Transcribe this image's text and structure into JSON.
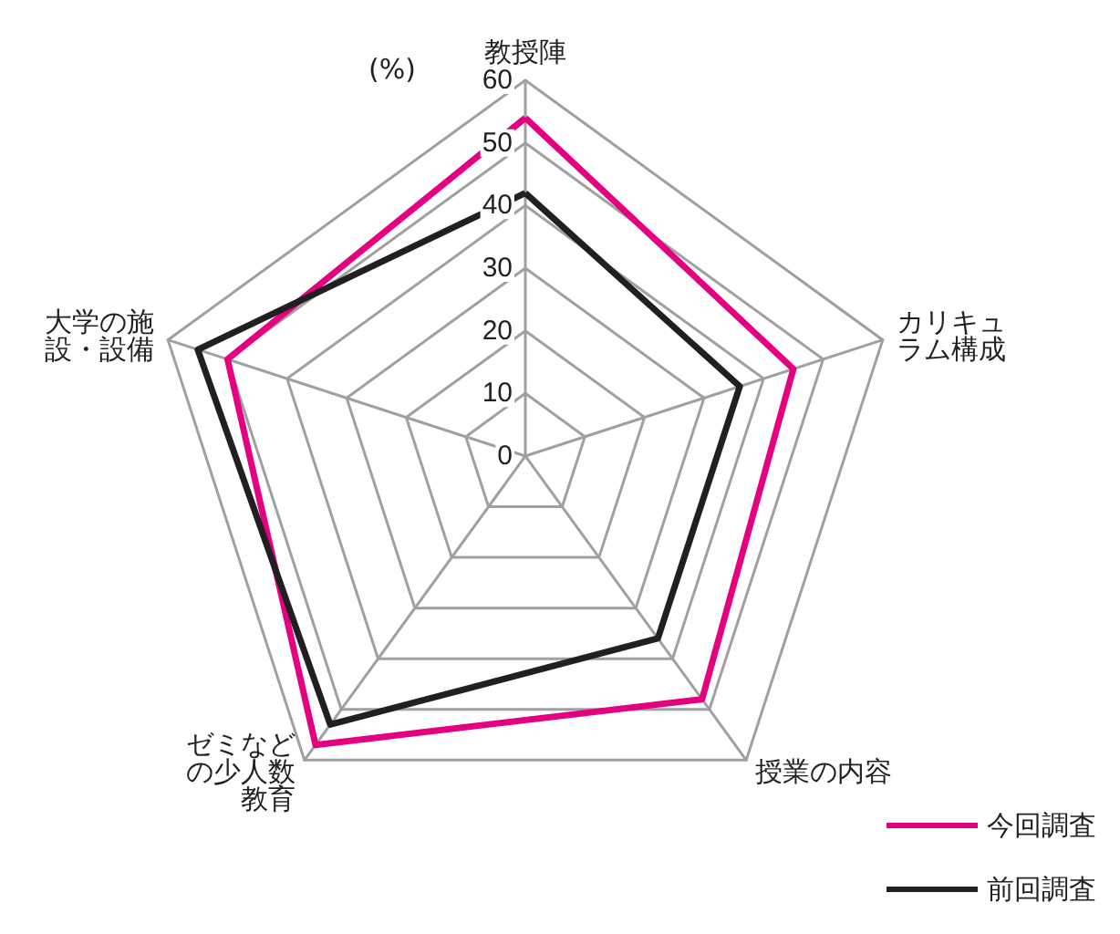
{
  "chart_data": {
    "type": "radar",
    "ylabel": "(%)",
    "categories": [
      "教授陣",
      "カリキュラム構成",
      "授業の内容",
      "ゼミなどの少人数教育",
      "大学の施設・設備"
    ],
    "series": [
      {
        "name": "今回調査",
        "color": "#e4007f",
        "values": [
          54,
          45,
          48,
          57,
          50
        ]
      },
      {
        "name": "前回調査",
        "color": "#231f20",
        "values": [
          42,
          36,
          36,
          53,
          55
        ]
      }
    ],
    "ylim": [
      0,
      60
    ],
    "yticks": [
      0,
      10,
      20,
      30,
      40,
      50,
      60
    ],
    "grid": true,
    "legend": "bottom right",
    "marker": "none",
    "line_style": "solid"
  }
}
